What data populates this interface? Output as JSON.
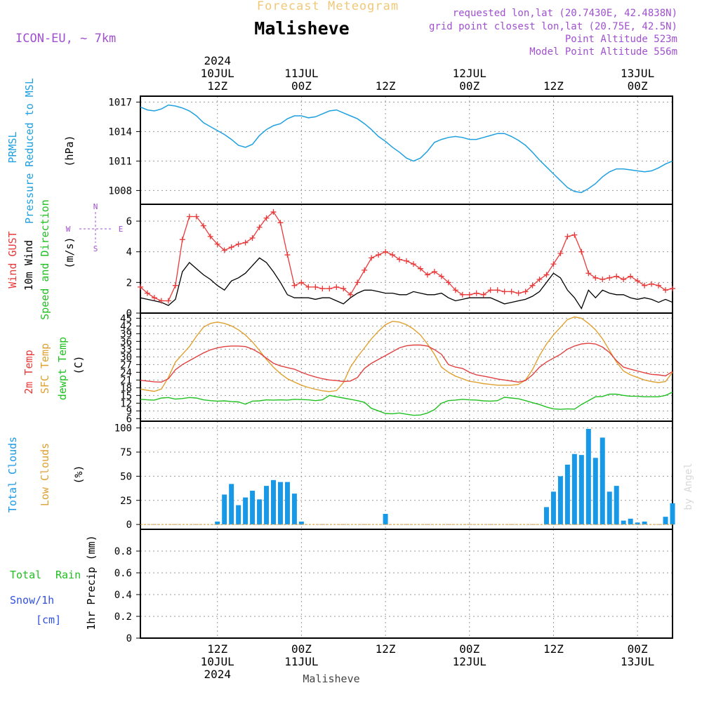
{
  "header": {
    "forecast_title": "Forecast Meteogram",
    "location": "Malisheve",
    "model": "ICON-EU, ~ 7km",
    "requested": "requested lon,lat (20.7430E, 42.4838N)",
    "grid_point": "grid point closest lon,lat (20.75E, 42.5N)",
    "point_altitude": "Point Altitude 523m",
    "model_altitude": "Model Point Altitude 556m",
    "footer_location": "Malisheve",
    "credit": "by Angel"
  },
  "colors": {
    "pressure": "#1ea0e0",
    "gust": "#e83a3a",
    "wind": "#000000",
    "temp2m": "#e04040",
    "sfc": "#e0a030",
    "dew": "#20c020",
    "clouds": "#1899e8",
    "low_clouds": "#e0a030",
    "violet": "#a050d0",
    "rain_label": "#20c020",
    "snow_label": "#3050e0",
    "grid": "#999999"
  },
  "time_axis": {
    "start_hour": 0,
    "end_hour": 76,
    "top_labels": [
      {
        "hour": 11,
        "lines": [
          "2024",
          "10JUL",
          "12Z"
        ]
      },
      {
        "hour": 23,
        "lines": [
          "11JUL",
          "00Z"
        ]
      },
      {
        "hour": 35,
        "lines": [
          "12Z"
        ]
      },
      {
        "hour": 47,
        "lines": [
          "12JUL",
          "00Z"
        ]
      },
      {
        "hour": 59,
        "lines": [
          "12Z"
        ]
      },
      {
        "hour": 71,
        "lines": [
          "13JUL",
          "00Z"
        ]
      }
    ],
    "bottom_labels": [
      {
        "hour": 11,
        "lines": [
          "12Z",
          "10JUL",
          "2024"
        ]
      },
      {
        "hour": 23,
        "lines": [
          "00Z",
          "11JUL"
        ]
      },
      {
        "hour": 35,
        "lines": [
          "12Z"
        ]
      },
      {
        "hour": 47,
        "lines": [
          "00Z",
          "12JUL"
        ]
      },
      {
        "hour": 59,
        "lines": [
          "12Z"
        ]
      },
      {
        "hour": 71,
        "lines": [
          "00Z",
          "13JUL"
        ]
      }
    ]
  },
  "panels": {
    "pressure": {
      "labels": [
        "PRMSL",
        "Pressure Reduced to MSL",
        "(hPa)"
      ],
      "ylim": [
        1006.6,
        1017.6
      ],
      "ticks": [
        1008,
        1011,
        1014,
        1017
      ]
    },
    "wind": {
      "labels": [
        "Wind GUST",
        "10m Wind",
        "Speed and Direction",
        "(m/s)"
      ],
      "compass": [
        "N",
        "W",
        "E",
        "S"
      ],
      "ylim": [
        0,
        7.1
      ],
      "ticks": [
        0,
        2,
        4,
        6
      ]
    },
    "temp": {
      "labels": [
        "2m Temp",
        "SFC Temp",
        "dewpt Temp",
        "(C)"
      ],
      "ylim": [
        5,
        47
      ],
      "ticks": [
        6,
        9,
        12,
        15,
        18,
        21,
        24,
        27,
        30,
        33,
        36,
        39,
        42,
        45
      ]
    },
    "clouds": {
      "labels": [
        "Total Clouds",
        "Low Clouds",
        "(%)"
      ],
      "ylim": [
        -5,
        107
      ],
      "ticks": [
        0,
        25,
        50,
        75,
        100
      ]
    },
    "precip": {
      "labels": [
        "Total",
        "Rain",
        "Snow/1h",
        "[cm]",
        "1hr Precip (mm)"
      ],
      "ylim": [
        0,
        1.0
      ],
      "ticks": [
        0,
        0.2,
        0.4,
        0.6,
        0.8
      ]
    }
  },
  "chart_data": [
    {
      "type": "line",
      "name": "PRMSL",
      "x": [
        0,
        1,
        2,
        3,
        4,
        5,
        6,
        7,
        8,
        9,
        10,
        11,
        12,
        13,
        14,
        15,
        16,
        17,
        18,
        19,
        20,
        21,
        22,
        23,
        24,
        25,
        26,
        27,
        28,
        29,
        30,
        31,
        32,
        33,
        34,
        35,
        36,
        37,
        38,
        39,
        40,
        41,
        42,
        43,
        44,
        45,
        46,
        47,
        48,
        49,
        50,
        51,
        52,
        53,
        54,
        55,
        56,
        57,
        58,
        59,
        60,
        61,
        62,
        63,
        64,
        65,
        66,
        67,
        68,
        69,
        70,
        71,
        72,
        73,
        74,
        75,
        76
      ],
      "y": [
        1016.5,
        1016.2,
        1016.1,
        1016.3,
        1016.7,
        1016.6,
        1016.4,
        1016.1,
        1015.6,
        1014.9,
        1014.5,
        1014.1,
        1013.7,
        1013.2,
        1012.6,
        1012.4,
        1012.7,
        1013.6,
        1014.2,
        1014.6,
        1014.8,
        1015.3,
        1015.6,
        1015.6,
        1015.4,
        1015.5,
        1015.8,
        1016.1,
        1016.2,
        1015.9,
        1015.6,
        1015.3,
        1014.8,
        1014.2,
        1013.5,
        1013.0,
        1012.4,
        1011.9,
        1011.3,
        1011.0,
        1011.3,
        1012.0,
        1012.9,
        1013.2,
        1013.4,
        1013.5,
        1013.4,
        1013.2,
        1013.2,
        1013.4,
        1013.6,
        1013.8,
        1013.8,
        1013.5,
        1013.1,
        1012.6,
        1011.9,
        1011.1,
        1010.4,
        1009.7,
        1009.0,
        1008.3,
        1007.9,
        1007.8,
        1008.2,
        1008.7,
        1009.4,
        1009.9,
        1010.2,
        1010.2,
        1010.1,
        1010.0,
        1009.9,
        1010.0,
        1010.3,
        1010.7,
        1011.0
      ]
    },
    {
      "type": "line",
      "name": "Wind GUST",
      "x": [
        0,
        1,
        2,
        3,
        4,
        5,
        6,
        7,
        8,
        9,
        10,
        11,
        12,
        13,
        14,
        15,
        16,
        17,
        18,
        19,
        20,
        21,
        22,
        23,
        24,
        25,
        26,
        27,
        28,
        29,
        30,
        31,
        32,
        33,
        34,
        35,
        36,
        37,
        38,
        39,
        40,
        41,
        42,
        43,
        44,
        45,
        46,
        47,
        48,
        49,
        50,
        51,
        52,
        53,
        54,
        55,
        56,
        57,
        58,
        59,
        60,
        61,
        62,
        63,
        64,
        65,
        66,
        67,
        68,
        69,
        70,
        71,
        72,
        73,
        74,
        75,
        76
      ],
      "y": [
        1.7,
        1.3,
        1.0,
        0.8,
        0.8,
        1.8,
        4.8,
        6.3,
        6.3,
        5.7,
        5.0,
        4.5,
        4.1,
        4.3,
        4.5,
        4.6,
        4.9,
        5.6,
        6.2,
        6.6,
        5.9,
        3.8,
        1.8,
        2.0,
        1.7,
        1.7,
        1.6,
        1.6,
        1.7,
        1.6,
        1.2,
        2.0,
        2.8,
        3.6,
        3.8,
        4.0,
        3.8,
        3.5,
        3.4,
        3.2,
        2.9,
        2.5,
        2.7,
        2.4,
        2.0,
        1.5,
        1.2,
        1.2,
        1.3,
        1.2,
        1.5,
        1.5,
        1.4,
        1.4,
        1.3,
        1.4,
        1.8,
        2.2,
        2.5,
        3.2,
        3.9,
        5.0,
        5.1,
        4.0,
        2.6,
        2.3,
        2.2,
        2.3,
        2.4,
        2.2,
        2.4,
        2.1,
        1.8,
        1.9,
        1.8,
        1.5,
        1.6
      ]
    },
    {
      "type": "line",
      "name": "10m Wind",
      "x": [
        0,
        1,
        2,
        3,
        4,
        5,
        6,
        7,
        8,
        9,
        10,
        11,
        12,
        13,
        14,
        15,
        16,
        17,
        18,
        19,
        20,
        21,
        22,
        23,
        24,
        25,
        26,
        27,
        28,
        29,
        30,
        31,
        32,
        33,
        34,
        35,
        36,
        37,
        38,
        39,
        40,
        41,
        42,
        43,
        44,
        45,
        46,
        47,
        48,
        49,
        50,
        51,
        52,
        53,
        54,
        55,
        56,
        57,
        58,
        59,
        60,
        61,
        62,
        63,
        64,
        65,
        66,
        67,
        68,
        69,
        70,
        71,
        72,
        73,
        74,
        75,
        76
      ],
      "y": [
        1.0,
        0.9,
        0.8,
        0.7,
        0.5,
        0.9,
        2.7,
        3.3,
        2.9,
        2.5,
        2.2,
        1.8,
        1.5,
        2.1,
        2.3,
        2.6,
        3.1,
        3.6,
        3.3,
        2.7,
        2.0,
        1.2,
        1.0,
        1.0,
        1.0,
        0.9,
        1.0,
        1.0,
        0.8,
        0.6,
        1.0,
        1.3,
        1.5,
        1.5,
        1.4,
        1.3,
        1.3,
        1.2,
        1.2,
        1.4,
        1.3,
        1.2,
        1.2,
        1.3,
        1.0,
        0.8,
        0.9,
        1.0,
        1.0,
        1.0,
        1.0,
        0.8,
        0.6,
        0.7,
        0.8,
        0.9,
        1.1,
        1.4,
        2.0,
        2.6,
        2.3,
        1.5,
        1.0,
        0.3,
        1.5,
        1.0,
        1.5,
        1.3,
        1.2,
        1.2,
        1.0,
        0.9,
        1.0,
        0.9,
        0.7,
        0.9,
        0.7
      ]
    },
    {
      "type": "line",
      "name": "2m Temp",
      "x": [
        0,
        1,
        2,
        3,
        4,
        5,
        6,
        7,
        8,
        9,
        10,
        11,
        12,
        13,
        14,
        15,
        16,
        17,
        18,
        19,
        20,
        21,
        22,
        23,
        24,
        25,
        26,
        27,
        28,
        29,
        30,
        31,
        32,
        33,
        34,
        35,
        36,
        37,
        38,
        39,
        40,
        41,
        42,
        43,
        44,
        45,
        46,
        47,
        48,
        49,
        50,
        51,
        52,
        53,
        54,
        55,
        56,
        57,
        58,
        59,
        60,
        61,
        62,
        63,
        64,
        65,
        66,
        67,
        68,
        69,
        70,
        71,
        72,
        73,
        74,
        75,
        76
      ],
      "y": [
        20.9,
        20.6,
        20.3,
        20.2,
        21.5,
        25.0,
        27.0,
        28.5,
        30.0,
        31.5,
        32.7,
        33.5,
        34.0,
        34.2,
        34.2,
        34.0,
        33.0,
        31.5,
        29.5,
        27.5,
        26.5,
        25.8,
        25.2,
        24.0,
        23.0,
        22.2,
        21.5,
        21.0,
        20.8,
        20.4,
        20.6,
        22.0,
        25.5,
        27.5,
        29.0,
        30.5,
        32.0,
        33.5,
        34.3,
        34.6,
        34.6,
        34.2,
        32.8,
        31.0,
        27.0,
        26.0,
        25.5,
        24.0,
        23.0,
        22.5,
        22.0,
        21.4,
        21.0,
        20.6,
        20.2,
        20.8,
        23.0,
        26.0,
        28.0,
        29.5,
        31.0,
        33.0,
        34.2,
        35.0,
        35.3,
        35.0,
        33.8,
        31.7,
        28.5,
        26.0,
        25.2,
        24.5,
        23.8,
        23.2,
        23.0,
        22.6,
        24.3
      ]
    },
    {
      "type": "line",
      "name": "SFC Temp",
      "x": [
        0,
        1,
        2,
        3,
        4,
        5,
        6,
        7,
        8,
        9,
        10,
        11,
        12,
        13,
        14,
        15,
        16,
        17,
        18,
        19,
        20,
        21,
        22,
        23,
        24,
        25,
        26,
        27,
        28,
        29,
        30,
        31,
        32,
        33,
        34,
        35,
        36,
        37,
        38,
        39,
        40,
        41,
        42,
        43,
        44,
        45,
        46,
        47,
        48,
        49,
        50,
        51,
        52,
        53,
        54,
        55,
        56,
        57,
        58,
        59,
        60,
        61,
        62,
        63,
        64,
        65,
        66,
        67,
        68,
        69,
        70,
        71,
        72,
        73,
        74,
        75,
        76
      ],
      "y": [
        17.5,
        17.0,
        16.6,
        17.5,
        22.0,
        28.0,
        31.0,
        34.0,
        38.0,
        41.5,
        43.0,
        43.5,
        43.0,
        42.0,
        40.5,
        38.5,
        35.8,
        32.5,
        29.0,
        26.0,
        23.5,
        21.5,
        20.2,
        19.0,
        18.1,
        17.4,
        16.8,
        16.5,
        16.9,
        20.0,
        26.0,
        30.0,
        33.5,
        37.0,
        40.0,
        42.5,
        43.8,
        43.5,
        42.5,
        40.8,
        38.5,
        35.0,
        31.0,
        26.0,
        24.0,
        22.5,
        21.5,
        20.5,
        20.1,
        19.6,
        19.3,
        19.0,
        19.0,
        19.0,
        19.3,
        21.0,
        25.0,
        30.5,
        35.0,
        38.5,
        41.5,
        44.5,
        45.5,
        45.0,
        43.0,
        40.5,
        37.0,
        32.5,
        28.0,
        24.5,
        23.0,
        22.0,
        21.0,
        20.4,
        20.0,
        20.4,
        24.0
      ]
    },
    {
      "type": "line",
      "name": "dewpt Temp",
      "x": [
        0,
        1,
        2,
        3,
        4,
        5,
        6,
        7,
        8,
        9,
        10,
        11,
        12,
        13,
        14,
        15,
        16,
        17,
        18,
        19,
        20,
        21,
        22,
        23,
        24,
        25,
        26,
        27,
        28,
        29,
        30,
        31,
        32,
        33,
        34,
        35,
        36,
        37,
        38,
        39,
        40,
        41,
        42,
        43,
        44,
        45,
        46,
        47,
        48,
        49,
        50,
        51,
        52,
        53,
        54,
        55,
        56,
        57,
        58,
        59,
        60,
        61,
        62,
        63,
        64,
        65,
        66,
        67,
        68,
        69,
        70,
        71,
        72,
        73,
        74,
        75,
        76
      ],
      "y": [
        13.5,
        13.3,
        13.2,
        14.0,
        14.2,
        13.6,
        13.8,
        14.2,
        14.0,
        13.3,
        13.0,
        12.8,
        12.9,
        12.6,
        12.5,
        11.6,
        12.8,
        12.9,
        13.3,
        13.2,
        13.3,
        13.2,
        13.5,
        13.4,
        13.3,
        13.0,
        13.3,
        15.0,
        14.5,
        14.0,
        13.5,
        13.0,
        12.3,
        10.0,
        9.0,
        8.0,
        7.9,
        8.2,
        7.7,
        7.3,
        7.4,
        8.2,
        9.5,
        12.0,
        13.0,
        13.2,
        13.5,
        13.3,
        13.2,
        12.9,
        12.8,
        13.0,
        14.3,
        14.0,
        13.7,
        13.0,
        12.2,
        11.5,
        10.5,
        9.8,
        9.6,
        9.8,
        9.7,
        11.5,
        13.0,
        14.5,
        14.6,
        15.5,
        15.5,
        15.0,
        14.7,
        14.7,
        14.5,
        14.5,
        14.5,
        15.0,
        16.3
      ]
    },
    {
      "type": "bar",
      "name": "Total Clouds",
      "x": [
        0,
        1,
        2,
        3,
        4,
        5,
        6,
        7,
        8,
        9,
        10,
        11,
        12,
        13,
        14,
        15,
        16,
        17,
        18,
        19,
        20,
        21,
        22,
        23,
        24,
        25,
        26,
        27,
        28,
        29,
        30,
        31,
        32,
        33,
        34,
        35,
        36,
        37,
        38,
        39,
        40,
        41,
        42,
        43,
        44,
        45,
        46,
        47,
        48,
        49,
        50,
        51,
        52,
        53,
        54,
        55,
        56,
        57,
        58,
        59,
        60,
        61,
        62,
        63,
        64,
        65,
        66,
        67,
        68,
        69,
        70,
        71,
        72,
        73,
        74,
        75,
        76
      ],
      "values": [
        0,
        0,
        0,
        0,
        0,
        0,
        0,
        0,
        0,
        0,
        0,
        3,
        31,
        42,
        20,
        28,
        35,
        26,
        40,
        46,
        44,
        44,
        32,
        3,
        0,
        0,
        0,
        0,
        0,
        0,
        0,
        0,
        0,
        0,
        0,
        11,
        0,
        0,
        0,
        0,
        0,
        0,
        0,
        0,
        0,
        0,
        0,
        0,
        0,
        0,
        0,
        0,
        0,
        0,
        0,
        0,
        0,
        0,
        18,
        34,
        50,
        62,
        73,
        72,
        99,
        69,
        90,
        34,
        40,
        4,
        6,
        2,
        3,
        0,
        0,
        8,
        22
      ]
    },
    {
      "type": "line",
      "name": "Total Rain",
      "x": [
        0,
        76
      ],
      "y": [
        0,
        0
      ]
    }
  ]
}
